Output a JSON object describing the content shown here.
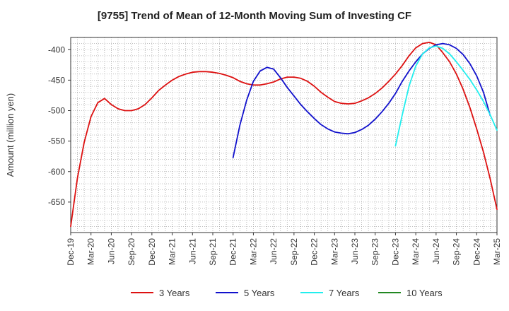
{
  "chart_data": {
    "type": "line",
    "title": "[9755]  Trend of Mean of 12-Month Moving Sum of Investing CF",
    "xlabel": "",
    "ylabel": "Amount (million yen)",
    "ylim": [
      -700,
      -380
    ],
    "yticks": [
      -400,
      -450,
      -500,
      -550,
      -600,
      -650
    ],
    "grid": true,
    "legend_position": "bottom",
    "x_tick_labels": [
      "Dec-19",
      "Mar-20",
      "Jun-20",
      "Sep-20",
      "Dec-20",
      "Mar-21",
      "Jun-21",
      "Sep-21",
      "Dec-21",
      "Mar-22",
      "Jun-22",
      "Sep-22",
      "Dec-22",
      "Mar-23",
      "Jun-23",
      "Sep-23",
      "Dec-23",
      "Mar-24",
      "Jun-24",
      "Sep-24",
      "Dec-24",
      "Mar-25"
    ],
    "series": [
      {
        "name": "3 Years",
        "color": "#dd1111",
        "start_index": 0,
        "values": [
          -690,
          -610,
          -552,
          -510,
          -487,
          -480,
          -490,
          -497,
          -500,
          -500,
          -497,
          -490,
          -479,
          -467,
          -458,
          -450,
          -444,
          -440,
          -437,
          -436,
          -436,
          -437,
          -439,
          -442,
          -446,
          -452,
          -456,
          -458,
          -458,
          -456,
          -453,
          -448,
          -445,
          -445,
          -447,
          -452,
          -460,
          -470,
          -478,
          -485,
          -488,
          -489,
          -488,
          -484,
          -479,
          -472,
          -463,
          -452,
          -440,
          -426,
          -410,
          -397,
          -390,
          -388,
          -392,
          -405,
          -420,
          -440,
          -465,
          -495,
          -530,
          -568,
          -612,
          -662
        ]
      },
      {
        "name": "5 Years",
        "color": "#1111cc",
        "start_index": 24,
        "values": [
          -577,
          -524,
          -483,
          -452,
          -435,
          -429,
          -432,
          -446,
          -462,
          -476,
          -490,
          -502,
          -513,
          -523,
          -530,
          -535,
          -537,
          -538,
          -536,
          -531,
          -524,
          -514,
          -502,
          -488,
          -472,
          -452,
          -435,
          -420,
          -407,
          -398,
          -392,
          -390,
          -392,
          -398,
          -408,
          -423,
          -443,
          -470,
          -508
        ]
      },
      {
        "name": "7 Years",
        "color": "#22eeee",
        "start_index": 48,
        "values": [
          -558,
          -507,
          -460,
          -427,
          -407,
          -397,
          -394,
          -398,
          -407,
          -420,
          -434,
          -449,
          -466,
          -485,
          -507,
          -532
        ]
      },
      {
        "name": "10 Years",
        "color": "#228822",
        "start_index": 0,
        "values": []
      }
    ]
  }
}
